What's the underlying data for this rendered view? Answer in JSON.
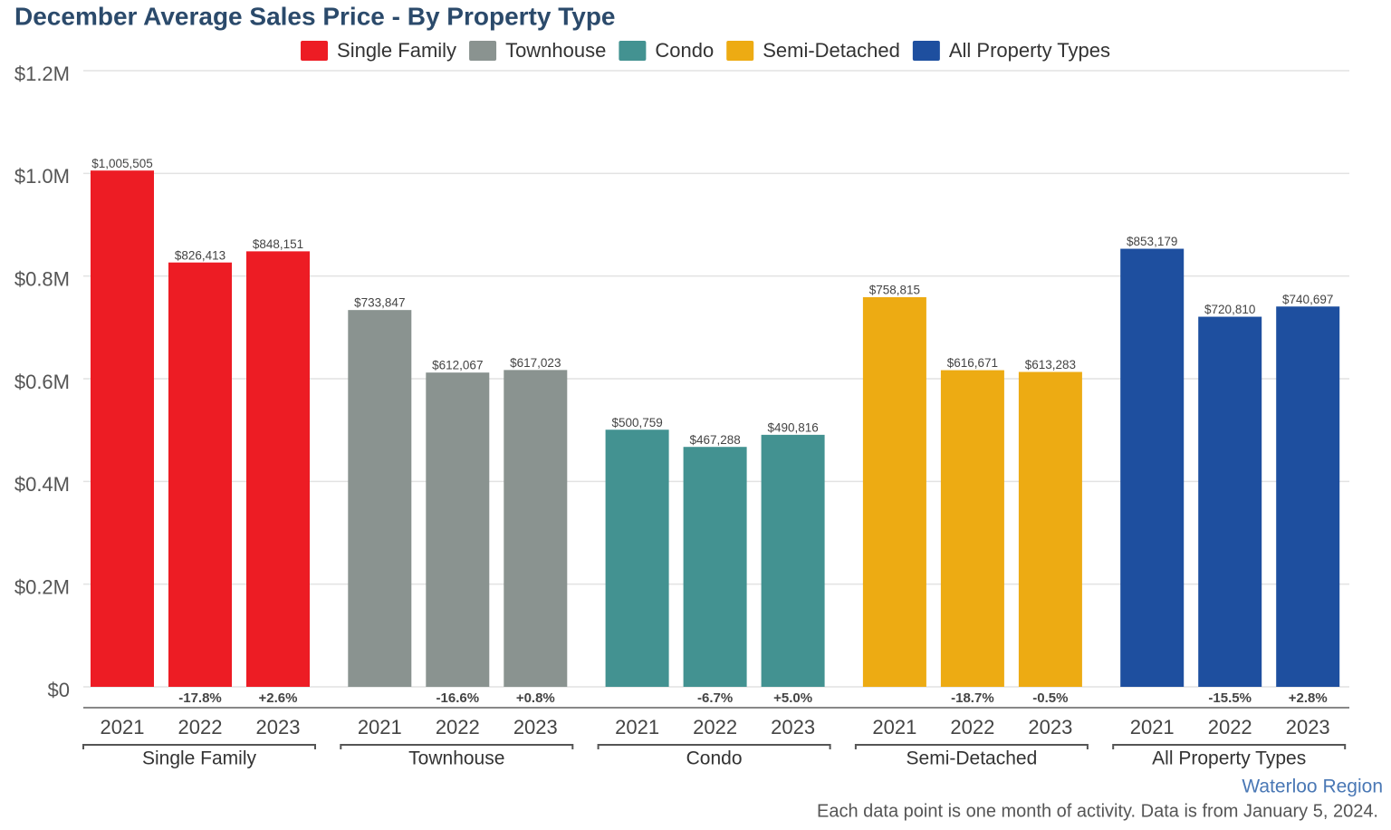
{
  "chart_data": {
    "type": "bar",
    "title": "December Average Sales Price - By Property Type",
    "categories": [
      "2021",
      "2022",
      "2023"
    ],
    "series": [
      {
        "name": "Single Family",
        "color": "#ed1c24",
        "values": [
          1005505,
          826413,
          848151
        ],
        "value_labels": [
          "$1,005,505",
          "$826,413",
          "$848,151"
        ],
        "change_labels": [
          null,
          "-17.8%",
          "+2.6%"
        ]
      },
      {
        "name": "Townhouse",
        "color": "#8a9390",
        "values": [
          733847,
          612067,
          617023
        ],
        "value_labels": [
          "$733,847",
          "$612,067",
          "$617,023"
        ],
        "change_labels": [
          null,
          "-16.6%",
          "+0.8%"
        ]
      },
      {
        "name": "Condo",
        "color": "#439291",
        "values": [
          500759,
          467288,
          490816
        ],
        "value_labels": [
          "$500,759",
          "$467,288",
          "$490,816"
        ],
        "change_labels": [
          null,
          "-6.7%",
          "+5.0%"
        ]
      },
      {
        "name": "Semi-Detached",
        "color": "#edab13",
        "values": [
          758815,
          616671,
          613283
        ],
        "value_labels": [
          "$758,815",
          "$616,671",
          "$613,283"
        ],
        "change_labels": [
          null,
          "-18.7%",
          "-0.5%"
        ]
      },
      {
        "name": "All Property Types",
        "color": "#1e4f9f",
        "values": [
          853179,
          720810,
          740697
        ],
        "value_labels": [
          "$853,179",
          "$720,810",
          "$740,697"
        ],
        "change_labels": [
          null,
          "-15.5%",
          "+2.8%"
        ]
      }
    ],
    "ylim": [
      0,
      1200000
    ],
    "yticks": [
      {
        "value": 0,
        "label": "$0"
      },
      {
        "value": 200000,
        "label": "$0.2M"
      },
      {
        "value": 400000,
        "label": "$0.4M"
      },
      {
        "value": 600000,
        "label": "$0.6M"
      },
      {
        "value": 800000,
        "label": "$0.8M"
      },
      {
        "value": 1000000,
        "label": "$1.0M"
      },
      {
        "value": 1200000,
        "label": "$1.2M"
      }
    ],
    "grid": true,
    "legend": "top",
    "region": "Waterloo Region",
    "footnote": "Each data point is one month of activity. Data is from January 5, 2024."
  }
}
